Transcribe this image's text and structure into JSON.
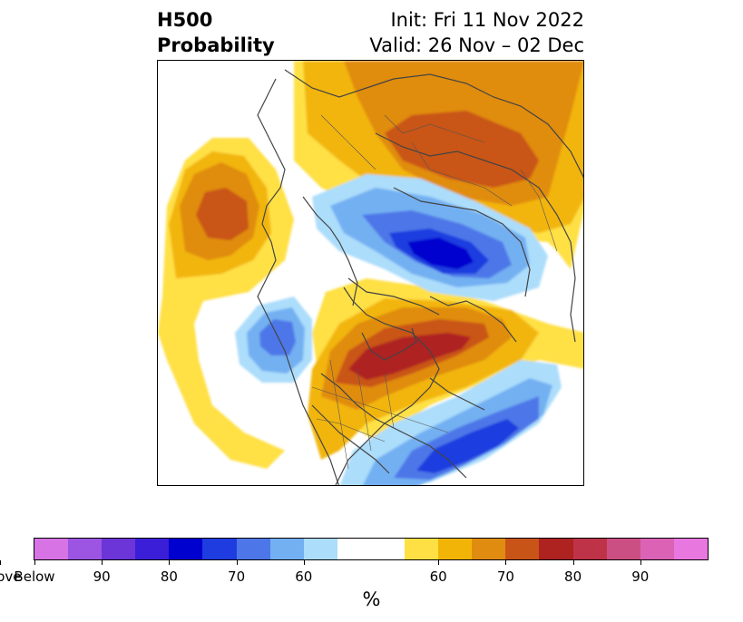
{
  "header": {
    "title_line1": "H500",
    "title_line2": "Probability",
    "init": "Init: Fri 11 Nov 2022",
    "valid": "Valid: 26 Nov – 02 Dec"
  },
  "map": {
    "projection": "north-polar-stereographic",
    "anomalies": [
      {
        "region": "western Canada / Alaska",
        "sign": "above",
        "max_pct": 75
      },
      {
        "region": "Gulf of Alaska / North Pacific",
        "sign": "above",
        "max_pct": 75
      },
      {
        "region": "central Arctic / Siberia",
        "sign": "below",
        "max_pct": 85
      },
      {
        "region": "eastern Canada / Greenland",
        "sign": "above",
        "max_pct": 80
      },
      {
        "region": "subtropical Pacific",
        "sign": "below",
        "max_pct": 70
      },
      {
        "region": "western North Atlantic",
        "sign": "below",
        "max_pct": 80
      }
    ]
  },
  "colorbar": {
    "colors": [
      "#d873e6",
      "#9c55e3",
      "#6b35d8",
      "#3b1ed8",
      "#0000cf",
      "#1e3cdf",
      "#4d77e8",
      "#73b0f2",
      "#acddfb",
      "#ffffff",
      "#ffe044",
      "#f2b507",
      "#e08c11",
      "#c95417",
      "#ae2220",
      "#be3348",
      "#cc4f83",
      "#db62b5",
      "#e977e0"
    ],
    "tick_labels": [
      "Below",
      "90",
      "80",
      "70",
      "60",
      "60",
      "70",
      "80",
      "90",
      "Above"
    ],
    "unit": "%"
  }
}
